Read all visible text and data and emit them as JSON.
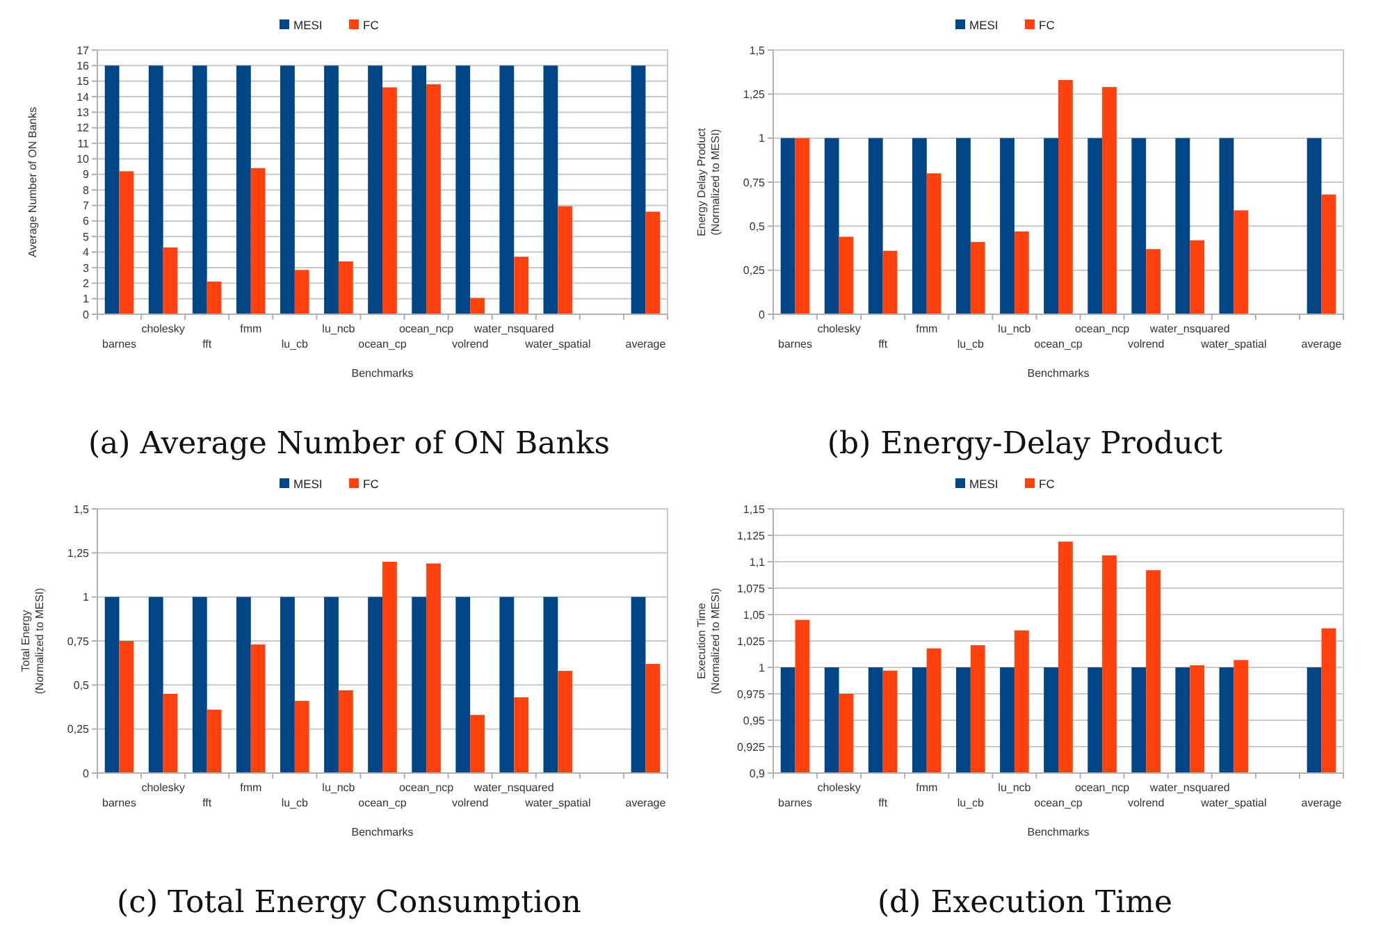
{
  "chart_data": [
    {
      "type": "bar",
      "title": "(a) Average Number of ON Banks",
      "xlabel": "Benchmarks",
      "ylabel": "Average Number of ON Banks",
      "categories": [
        "barnes",
        "cholesky",
        "fft",
        "fmm",
        "lu_cb",
        "lu_ncb",
        "ocean_cp",
        "ocean_ncp",
        "volrend",
        "water_nsquared",
        "water_spatial",
        null,
        "average"
      ],
      "series": [
        {
          "name": "MESI",
          "color": "#004586",
          "values": [
            16,
            16,
            16,
            16,
            16,
            16,
            16,
            16,
            16,
            16,
            16,
            null,
            16
          ]
        },
        {
          "name": "FC",
          "color": "#ff420e",
          "values": [
            9.2,
            4.3,
            2.1,
            9.4,
            2.85,
            3.4,
            14.6,
            14.8,
            1.05,
            3.7,
            6.95,
            null,
            6.6
          ]
        }
      ],
      "ylim": [
        0,
        17
      ],
      "yticks": [
        0,
        1,
        2,
        3,
        4,
        5,
        6,
        7,
        8,
        9,
        10,
        11,
        12,
        13,
        14,
        15,
        16,
        17
      ],
      "grid": "y",
      "legend": "top"
    },
    {
      "type": "bar",
      "title": "(b) Energy-Delay Product",
      "xlabel": "Benchmarks",
      "ylabel": "Energy Delay Product\n(Normalized to MESI)",
      "categories": [
        "barnes",
        "cholesky",
        "fft",
        "fmm",
        "lu_cb",
        "lu_ncb",
        "ocean_cp",
        "ocean_ncp",
        "volrend",
        "water_nsquared",
        "water_spatial",
        null,
        "average"
      ],
      "series": [
        {
          "name": "MESI",
          "color": "#004586",
          "values": [
            1,
            1,
            1,
            1,
            1,
            1,
            1,
            1,
            1,
            1,
            1,
            null,
            1
          ]
        },
        {
          "name": "FC",
          "color": "#ff420e",
          "values": [
            1,
            0.44,
            0.36,
            0.8,
            0.41,
            0.47,
            1.33,
            1.29,
            0.37,
            0.42,
            0.59,
            null,
            0.68
          ]
        }
      ],
      "ylim": [
        0,
        1.5
      ],
      "yticks": [
        0,
        {
          "value": 0.25,
          "label": "0,25"
        },
        {
          "value": 0.5,
          "label": "0,5"
        },
        {
          "value": 0.75,
          "label": "0,75"
        },
        1,
        {
          "value": 1.25,
          "label": "1,25"
        },
        {
          "value": 1.5,
          "label": "1,5"
        }
      ],
      "grid": "y",
      "legend": "top"
    },
    {
      "type": "bar",
      "title": "(c) Total Energy Consumption",
      "xlabel": "Benchmarks",
      "ylabel": "Total Energy\n(Normalized to MESI)",
      "categories": [
        "barnes",
        "cholesky",
        "fft",
        "fmm",
        "lu_cb",
        "lu_ncb",
        "ocean_cp",
        "ocean_ncp",
        "volrend",
        "water_nsquared",
        "water_spatial",
        null,
        "average"
      ],
      "series": [
        {
          "name": "MESI",
          "color": "#004586",
          "values": [
            1,
            1,
            1,
            1,
            1,
            1,
            1,
            1,
            1,
            1,
            1,
            null,
            1
          ]
        },
        {
          "name": "FC",
          "color": "#ff420e",
          "values": [
            0.75,
            0.45,
            0.36,
            0.73,
            0.41,
            0.47,
            1.2,
            1.19,
            0.33,
            0.43,
            0.58,
            null,
            0.62
          ]
        }
      ],
      "ylim": [
        0,
        1.5
      ],
      "yticks": [
        0,
        {
          "value": 0.25,
          "label": "0,25"
        },
        {
          "value": 0.5,
          "label": "0,5"
        },
        {
          "value": 0.75,
          "label": "0,75"
        },
        1,
        {
          "value": 1.25,
          "label": "1,25"
        },
        {
          "value": 1.5,
          "label": "1,5"
        }
      ],
      "grid": "y",
      "legend": "top"
    },
    {
      "type": "bar",
      "title": "(d) Execution Time",
      "xlabel": "Benchmarks",
      "ylabel": "Execution Time\n(Normalized to MESI)",
      "categories": [
        "barnes",
        "cholesky",
        "fft",
        "fmm",
        "lu_cb",
        "lu_ncb",
        "ocean_cp",
        "ocean_ncp",
        "volrend",
        "water_nsquared",
        "water_spatial",
        null,
        "average"
      ],
      "series": [
        {
          "name": "MESI",
          "color": "#004586",
          "values": [
            1,
            1,
            1,
            1,
            1,
            1,
            1,
            1,
            1,
            1,
            1,
            null,
            1
          ]
        },
        {
          "name": "FC",
          "color": "#ff420e",
          "values": [
            1.045,
            0.975,
            0.997,
            1.018,
            1.021,
            1.035,
            1.119,
            1.106,
            1.092,
            1.002,
            1.007,
            null,
            1.037
          ]
        }
      ],
      "ylim": [
        0.9,
        1.15
      ],
      "yticks": [
        {
          "value": 0.9,
          "label": "0,9"
        },
        {
          "value": 0.925,
          "label": "0,925"
        },
        {
          "value": 0.95,
          "label": "0,95"
        },
        {
          "value": 0.975,
          "label": "0,975"
        },
        1,
        {
          "value": 1.025,
          "label": "1,025"
        },
        {
          "value": 1.05,
          "label": "1,05"
        },
        {
          "value": 1.075,
          "label": "1,075"
        },
        {
          "value": 1.1,
          "label": "1,1"
        },
        {
          "value": 1.125,
          "label": "1,125"
        },
        {
          "value": 1.15,
          "label": "1,15"
        }
      ],
      "grid": "y",
      "legend": "top"
    }
  ]
}
